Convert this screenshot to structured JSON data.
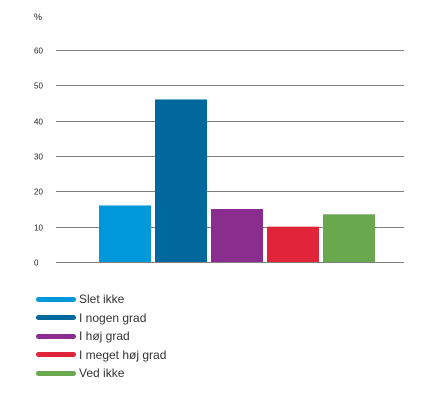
{
  "chart_data": {
    "type": "bar",
    "ylabel": "%",
    "ylim": [
      0,
      60
    ],
    "yticks": [
      0,
      10,
      20,
      30,
      40,
      50,
      60
    ],
    "grid": true,
    "legend_position": "bottom-left",
    "series": [
      {
        "name": "Slet ikke",
        "value": 16,
        "color": "#0098d8"
      },
      {
        "name": "I nogen grad",
        "value": 46,
        "color": "#00689c"
      },
      {
        "name": "I høj grad",
        "value": 15,
        "color": "#8a2d8e"
      },
      {
        "name": "I meget høj grad",
        "value": 10,
        "color": "#e0243a"
      },
      {
        "name": "Ved ikke",
        "value": 13.5,
        "color": "#6aa84f"
      }
    ]
  }
}
